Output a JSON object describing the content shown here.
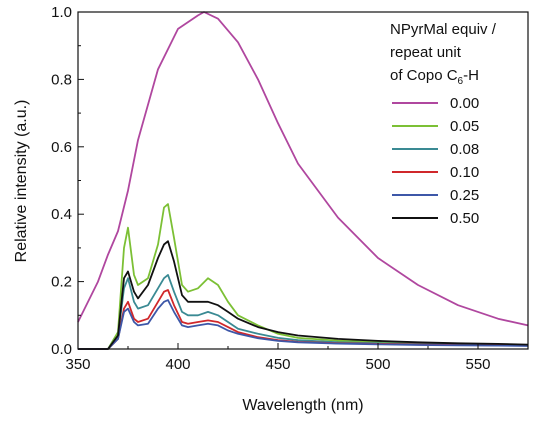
{
  "chart_data": {
    "type": "line",
    "xlabel": "Wavelength (nm)",
    "ylabel": "Relative intensity (a.u.)",
    "xlim": [
      350,
      575
    ],
    "ylim": [
      0,
      1.0
    ],
    "xticks": [
      "350",
      "400",
      "450",
      "500",
      "550"
    ],
    "xtick_values": [
      350,
      400,
      450,
      500,
      550
    ],
    "yticks": [
      "0.0",
      "0.2",
      "0.4",
      "0.6",
      "0.8",
      "1.0"
    ],
    "ytick_values": [
      0,
      0.2,
      0.4,
      0.6,
      0.8,
      1.0
    ],
    "legend": {
      "position": "top-right",
      "title_line1": "NPyrMal equiv /",
      "title_line2": "repeat unit",
      "title_line3_a": "of Copo C",
      "title_line3_sub": "6",
      "title_line3_b": "-H"
    },
    "series": [
      {
        "name": "0.00",
        "color": "#b0479f",
        "x": [
          350,
          360,
          365,
          370,
          375,
          380,
          390,
          400,
          410,
          413,
          420,
          430,
          440,
          450,
          460,
          480,
          500,
          520,
          540,
          560,
          575
        ],
        "y": [
          0.08,
          0.2,
          0.28,
          0.35,
          0.47,
          0.62,
          0.83,
          0.95,
          0.99,
          1.0,
          0.98,
          0.91,
          0.8,
          0.67,
          0.55,
          0.39,
          0.27,
          0.19,
          0.13,
          0.09,
          0.07
        ]
      },
      {
        "name": "0.05",
        "color": "#7cc035",
        "x": [
          350,
          365,
          370,
          373,
          375,
          378,
          380,
          385,
          390,
          393,
          395,
          398,
          402,
          405,
          410,
          415,
          420,
          425,
          430,
          440,
          450,
          460,
          480,
          500,
          520,
          540,
          560,
          575
        ],
        "y": [
          0.0,
          0.0,
          0.05,
          0.3,
          0.36,
          0.22,
          0.19,
          0.21,
          0.31,
          0.42,
          0.43,
          0.33,
          0.19,
          0.17,
          0.18,
          0.21,
          0.19,
          0.14,
          0.1,
          0.07,
          0.045,
          0.033,
          0.025,
          0.02,
          0.016,
          0.014,
          0.012,
          0.01
        ]
      },
      {
        "name": "0.08",
        "color": "#3a8a93",
        "x": [
          350,
          365,
          370,
          373,
          375,
          378,
          380,
          385,
          390,
          393,
          395,
          398,
          402,
          405,
          410,
          415,
          420,
          425,
          430,
          440,
          450,
          460,
          480,
          500,
          520,
          540,
          560,
          575
        ],
        "y": [
          0.0,
          0.0,
          0.04,
          0.18,
          0.21,
          0.14,
          0.12,
          0.13,
          0.18,
          0.21,
          0.22,
          0.17,
          0.11,
          0.1,
          0.1,
          0.11,
          0.1,
          0.08,
          0.06,
          0.045,
          0.033,
          0.026,
          0.02,
          0.017,
          0.015,
          0.013,
          0.011,
          0.01
        ]
      },
      {
        "name": "0.10",
        "color": "#d0282b",
        "x": [
          350,
          365,
          370,
          373,
          375,
          378,
          380,
          385,
          390,
          393,
          395,
          398,
          402,
          405,
          410,
          415,
          420,
          425,
          430,
          440,
          450,
          460,
          480,
          500,
          520,
          540,
          560,
          575
        ],
        "y": [
          0.0,
          0.0,
          0.03,
          0.12,
          0.14,
          0.09,
          0.08,
          0.09,
          0.14,
          0.17,
          0.175,
          0.13,
          0.08,
          0.075,
          0.08,
          0.085,
          0.08,
          0.065,
          0.05,
          0.035,
          0.026,
          0.021,
          0.017,
          0.015,
          0.013,
          0.012,
          0.011,
          0.01
        ]
      },
      {
        "name": "0.25",
        "color": "#3d57a8",
        "x": [
          350,
          365,
          370,
          373,
          375,
          378,
          380,
          385,
          390,
          393,
          395,
          398,
          402,
          405,
          410,
          415,
          420,
          425,
          430,
          440,
          450,
          460,
          480,
          500,
          520,
          540,
          560,
          575
        ],
        "y": [
          0.0,
          0.0,
          0.03,
          0.11,
          0.12,
          0.08,
          0.07,
          0.075,
          0.12,
          0.14,
          0.145,
          0.11,
          0.07,
          0.065,
          0.07,
          0.075,
          0.07,
          0.055,
          0.045,
          0.032,
          0.024,
          0.02,
          0.016,
          0.014,
          0.012,
          0.011,
          0.01,
          0.009
        ]
      },
      {
        "name": "0.50",
        "color": "#111111",
        "x": [
          350,
          365,
          370,
          373,
          375,
          378,
          380,
          385,
          390,
          393,
          395,
          398,
          402,
          405,
          410,
          415,
          420,
          425,
          430,
          440,
          450,
          460,
          480,
          500,
          520,
          540,
          560,
          575
        ],
        "y": [
          0.0,
          0.0,
          0.04,
          0.21,
          0.23,
          0.17,
          0.15,
          0.19,
          0.27,
          0.31,
          0.32,
          0.26,
          0.16,
          0.14,
          0.14,
          0.14,
          0.13,
          0.11,
          0.09,
          0.065,
          0.05,
          0.04,
          0.03,
          0.024,
          0.02,
          0.017,
          0.015,
          0.013
        ]
      }
    ]
  }
}
